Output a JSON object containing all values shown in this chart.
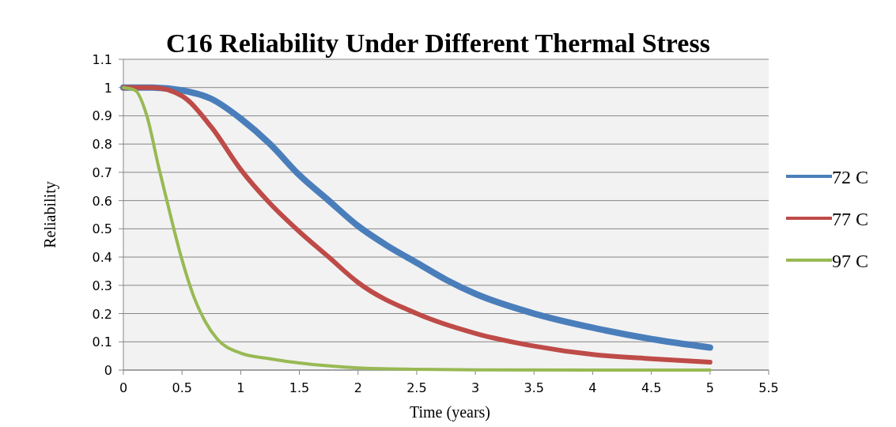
{
  "chart_data": {
    "type": "line",
    "title": "C16 Reliability Under Different Thermal Stress",
    "xlabel": "Time (years)",
    "ylabel": "Reliability",
    "xlim": [
      0,
      5.5
    ],
    "xticks": [
      0,
      0.5,
      1,
      1.5,
      2,
      2.5,
      3,
      3.5,
      4,
      4.5,
      5,
      5.5
    ],
    "ylim": [
      0,
      1.1
    ],
    "yticks": [
      0,
      0.1,
      0.2,
      0.3,
      0.4,
      0.5,
      0.6,
      0.7,
      0.8,
      0.9,
      1,
      1.1
    ],
    "grid": "y",
    "legend": "right",
    "marker": "none",
    "line_style": "solid",
    "series": [
      {
        "name": "72 C",
        "color": "#4a7ebb",
        "x": [
          0,
          0.25,
          0.5,
          0.75,
          1,
          1.25,
          1.5,
          1.75,
          2,
          2.25,
          2.5,
          2.75,
          3,
          3.5,
          4,
          4.5,
          5
        ],
        "values": [
          1,
          1,
          0.99,
          0.96,
          0.89,
          0.8,
          0.69,
          0.6,
          0.51,
          0.44,
          0.38,
          0.32,
          0.27,
          0.2,
          0.15,
          0.11,
          0.08
        ]
      },
      {
        "name": "77 C",
        "color": "#be4b48",
        "x": [
          0,
          0.25,
          0.5,
          0.75,
          1,
          1.25,
          1.5,
          1.75,
          2,
          2.5,
          3,
          3.5,
          4,
          4.5,
          5
        ],
        "values": [
          1,
          1,
          0.97,
          0.86,
          0.71,
          0.59,
          0.49,
          0.4,
          0.31,
          0.2,
          0.13,
          0.085,
          0.055,
          0.04,
          0.028
        ]
      },
      {
        "name": "97 C",
        "color": "#98b954",
        "x": [
          0,
          0.1,
          0.2,
          0.3,
          0.4,
          0.5,
          0.6,
          0.7,
          0.8,
          1,
          1.25,
          1.5,
          2,
          2.5,
          3,
          4,
          5
        ],
        "values": [
          1,
          0.99,
          0.9,
          0.72,
          0.55,
          0.39,
          0.26,
          0.17,
          0.11,
          0.06,
          0.04,
          0.025,
          0.008,
          0.003,
          0.001,
          0,
          0
        ]
      }
    ]
  }
}
